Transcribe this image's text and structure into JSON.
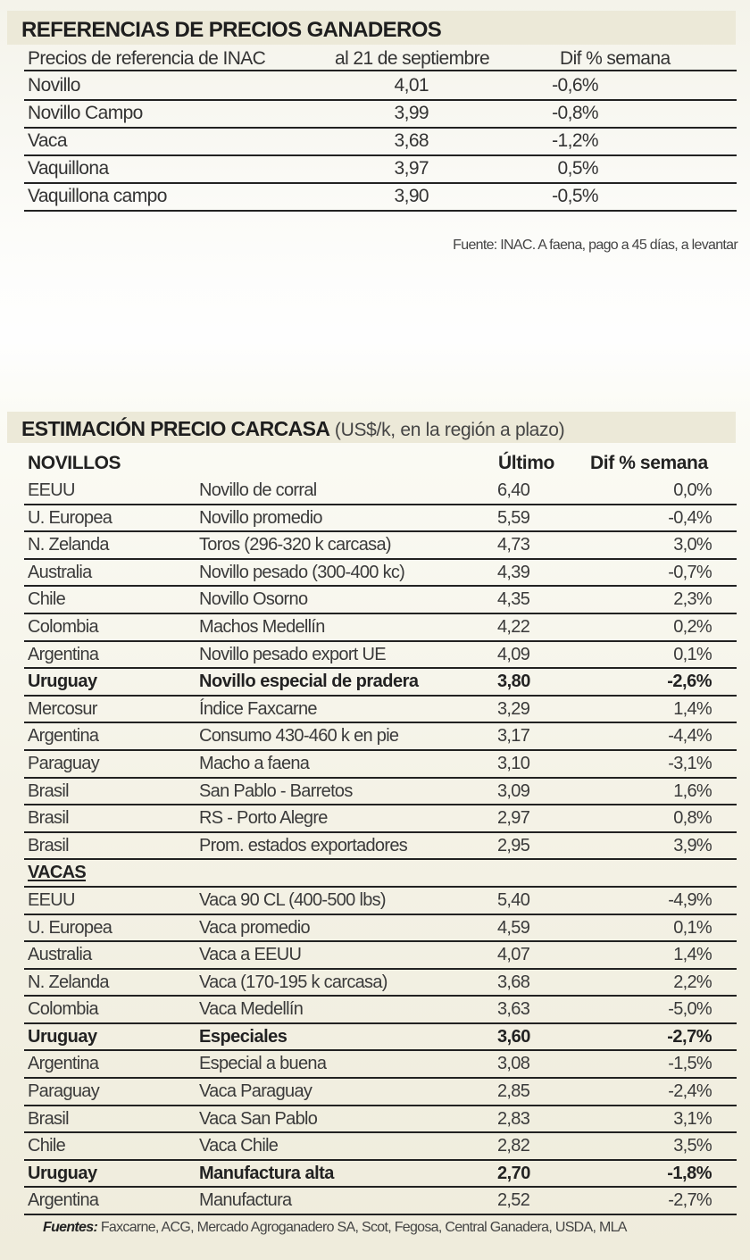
{
  "references": {
    "title": "REFERENCIAS DE PRECIOS GANADEROS",
    "headers": {
      "label": "Precios de referencia de INAC",
      "date": "al 21 de septiembre",
      "diff": "Dif % semana"
    },
    "rows": [
      {
        "category": "Novillo",
        "price": "4,01",
        "diff": "-0,6%"
      },
      {
        "category": "Novillo Campo",
        "price": "3,99",
        "diff": "-0,8%"
      },
      {
        "category": "Vaca",
        "price": "3,68",
        "diff": "-1,2%"
      },
      {
        "category": "Vaquillona",
        "price": "3,97",
        "diff": "0,5%"
      },
      {
        "category": "Vaquillona campo",
        "price": "3,90",
        "diff": "-0,5%"
      }
    ],
    "source": "Fuente: INAC. A faena, pago a 45 días, a levantar"
  },
  "carcass": {
    "title": "ESTIMACIÓN PRECIO CARCASA",
    "subtitle": " (US$/k, en la región a plazo)",
    "headers": {
      "section": "NOVILLOS",
      "last": "Último",
      "diff": "Dif % semana"
    },
    "novillos": [
      {
        "country": "EEUU",
        "desc": "Novillo de corral",
        "last": "6,40",
        "diff": "0,0%",
        "bold": false
      },
      {
        "country": "U. Europea",
        "desc": "Novillo promedio",
        "last": "5,59",
        "diff": "-0,4%",
        "bold": false
      },
      {
        "country": "N. Zelanda",
        "desc": "Toros (296-320 k carcasa)",
        "last": "4,73",
        "diff": "3,0%",
        "bold": false
      },
      {
        "country": "Australia",
        "desc": "Novillo pesado (300-400 kc)",
        "last": "4,39",
        "diff": "-0,7%",
        "bold": false
      },
      {
        "country": "Chile",
        "desc": "Novillo Osorno",
        "last": "4,35",
        "diff": "2,3%",
        "bold": false
      },
      {
        "country": "Colombia",
        "desc": "Machos Medellín",
        "last": "4,22",
        "diff": "0,2%",
        "bold": false
      },
      {
        "country": "Argentina",
        "desc": "Novillo pesado export UE",
        "last": "4,09",
        "diff": "0,1%",
        "bold": false
      },
      {
        "country": "Uruguay",
        "desc": "Novillo especial de pradera",
        "last": "3,80",
        "diff": "-2,6%",
        "bold": true
      },
      {
        "country": "Mercosur",
        "desc": "Índice Faxcarne",
        "last": "3,29",
        "diff": "1,4%",
        "bold": false
      },
      {
        "country": "Argentina",
        "desc": "Consumo 430-460 k en pie",
        "last": "3,17",
        "diff": "-4,4%",
        "bold": false
      },
      {
        "country": "Paraguay",
        "desc": "Macho a faena",
        "last": "3,10",
        "diff": "-3,1%",
        "bold": false
      },
      {
        "country": "Brasil",
        "desc": "San Pablo - Barretos",
        "last": "3,09",
        "diff": "1,6%",
        "bold": false
      },
      {
        "country": "Brasil",
        "desc": "RS - Porto Alegre",
        "last": "2,97",
        "diff": "0,8%",
        "bold": false
      },
      {
        "country": "Brasil",
        "desc": "Prom. estados exportadores",
        "last": "2,95",
        "diff": "3,9%",
        "bold": false
      }
    ],
    "vacas_label": "VACAS",
    "vacas": [
      {
        "country": "EEUU",
        "desc": "Vaca 90 CL (400-500 lbs)",
        "last": "5,40",
        "diff": "-4,9%",
        "bold": false
      },
      {
        "country": "U. Europea",
        "desc": "Vaca promedio",
        "last": "4,59",
        "diff": "0,1%",
        "bold": false
      },
      {
        "country": "Australia",
        "desc": "Vaca a EEUU",
        "last": "4,07",
        "diff": "1,4%",
        "bold": false
      },
      {
        "country": "N. Zelanda",
        "desc": "Vaca (170-195 k carcasa)",
        "last": "3,68",
        "diff": "2,2%",
        "bold": false
      },
      {
        "country": "Colombia",
        "desc": "Vaca Medellín",
        "last": "3,63",
        "diff": "-5,0%",
        "bold": false
      },
      {
        "country": "Uruguay",
        "desc": "Especiales",
        "last": "3,60",
        "diff": "-2,7%",
        "bold": true
      },
      {
        "country": "Argentina",
        "desc": "Especial a buena",
        "last": "3,08",
        "diff": "-1,5%",
        "bold": false
      },
      {
        "country": "Paraguay",
        "desc": "Vaca Paraguay",
        "last": "2,85",
        "diff": "-2,4%",
        "bold": false
      },
      {
        "country": "Brasil",
        "desc": "Vaca San Pablo",
        "last": "2,83",
        "diff": "3,1%",
        "bold": false
      },
      {
        "country": "Chile",
        "desc": "Vaca Chile",
        "last": "2,82",
        "diff": "3,5%",
        "bold": false
      },
      {
        "country": "Uruguay",
        "desc": "Manufactura alta",
        "last": "2,70",
        "diff": "-1,8%",
        "bold": true
      },
      {
        "country": "Argentina",
        "desc": "Manufactura",
        "last": "2,52",
        "diff": "-2,7%",
        "bold": false
      }
    ],
    "source_label": "Fuentes:",
    "source": " Faxcarne, ACG, Mercado Agroganadero SA, Scot, Fegosa, Central Ganadera, USDA, MLA"
  }
}
